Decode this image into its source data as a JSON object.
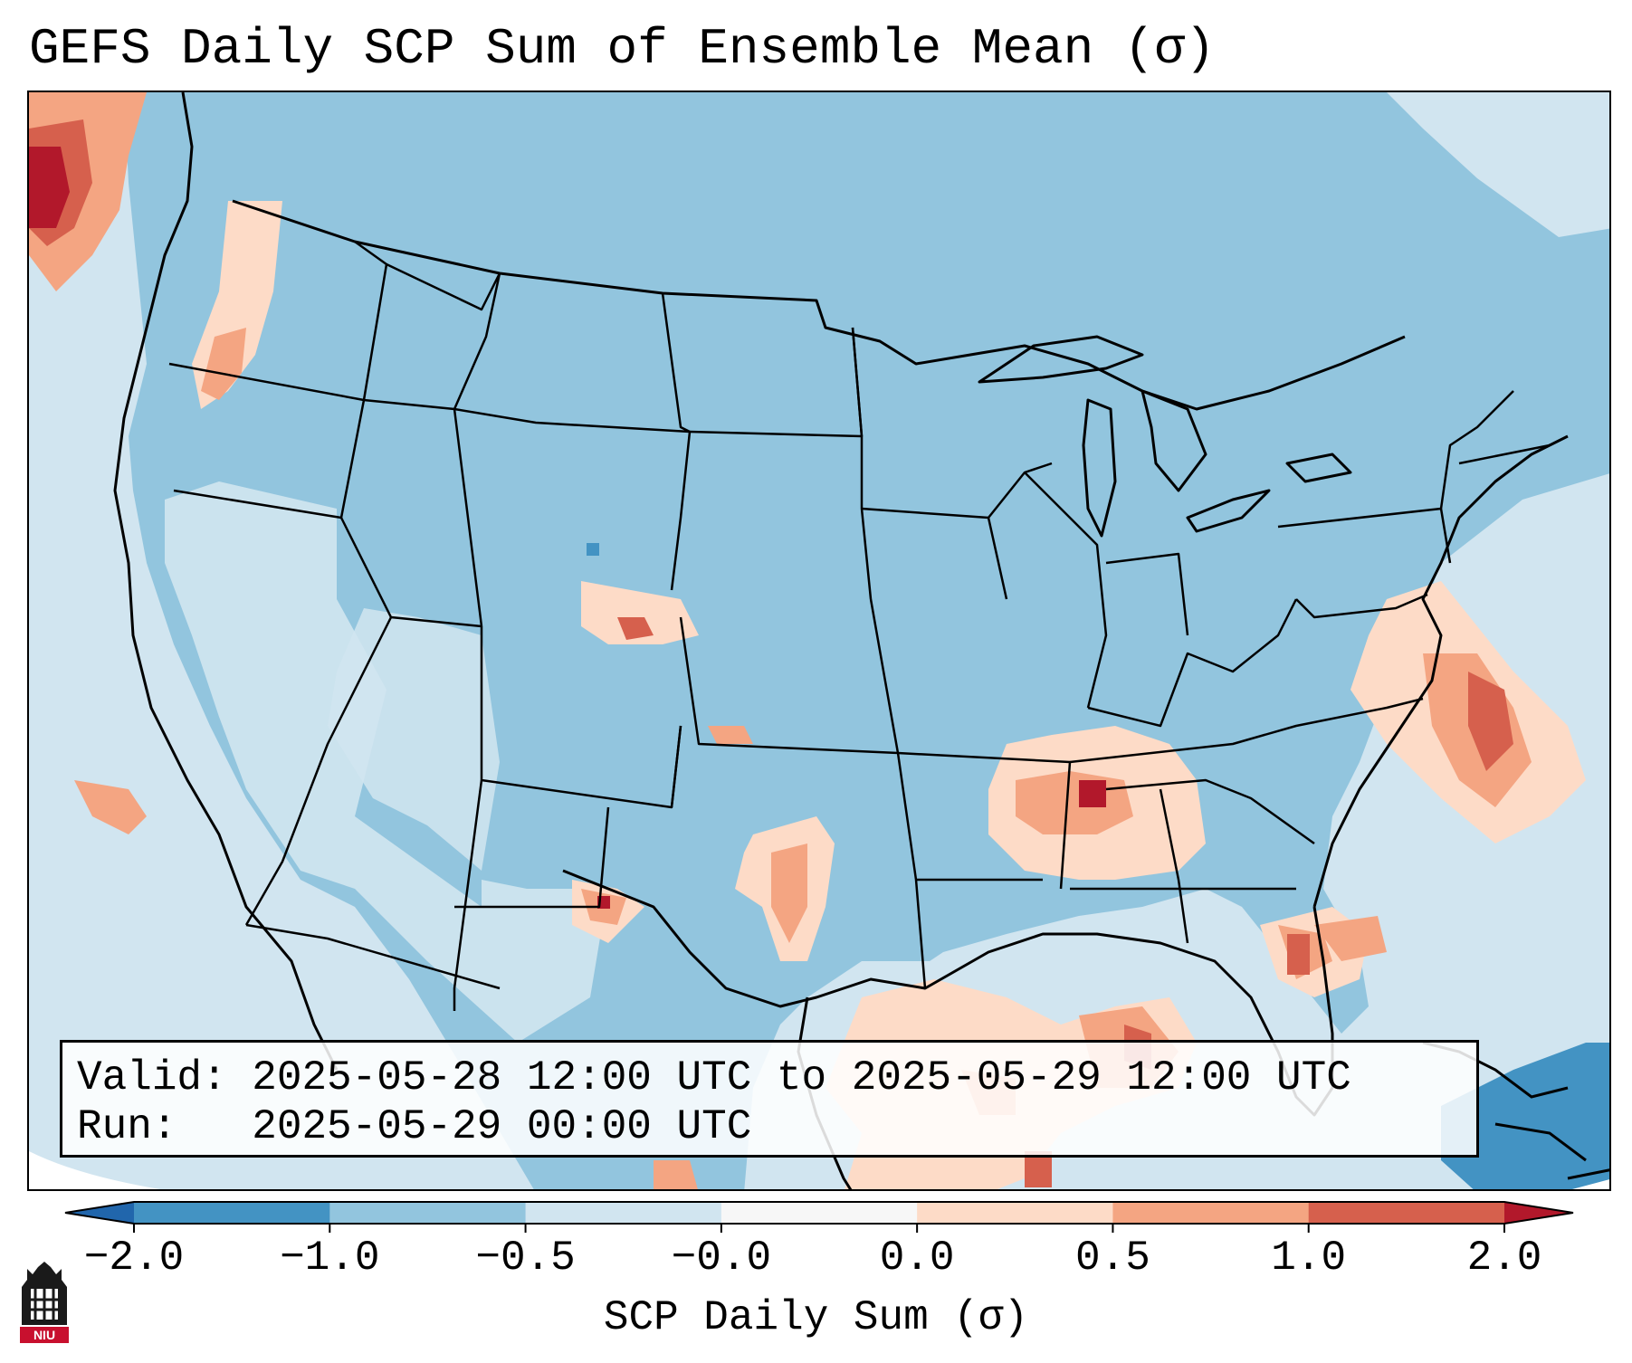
{
  "title": "GEFS Daily SCP Sum of Ensemble Mean (σ)",
  "info": {
    "valid_line": "Valid: 2025-05-28 12:00 UTC to 2025-05-29 12:00 UTC",
    "run_line": "Run:   2025-05-29 00:00 UTC"
  },
  "colorbar": {
    "label": "SCP Daily Sum (σ)",
    "ticks": [
      "−2.0",
      "−1.0",
      "−0.5",
      "−0.0",
      "0.0",
      "0.5",
      "1.0",
      "2.0"
    ],
    "colors": [
      "#4393c3",
      "#92c5de",
      "#d1e5f0",
      "#f7f7f7",
      "#fddbc7",
      "#f4a582",
      "#d6604d"
    ],
    "under_color": "#2166ac",
    "over_color": "#b2182b"
  },
  "logo": {
    "text": "NIU",
    "icon": "niu-castle-logo"
  },
  "map": {
    "region": "Continental United States",
    "ocean_color": "#d1e5f0",
    "land_color": "#92c5de"
  }
}
